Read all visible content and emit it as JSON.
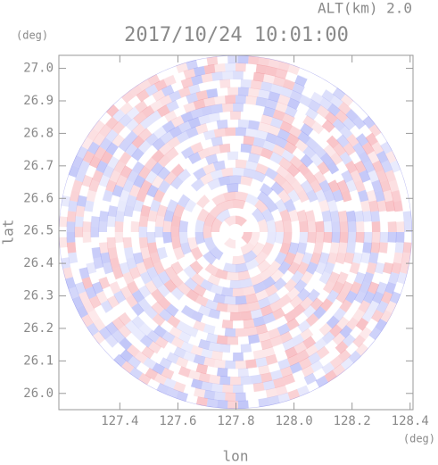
{
  "chart_data": {
    "type": "radar-ppi",
    "title": "2017/10/24 10:01:00",
    "subtitle": "ALT(km) 2.0",
    "x_label": "lon",
    "y_label": "lat",
    "x_unit": "(deg)",
    "y_unit": "(deg)",
    "xlim": [
      127.19,
      128.41
    ],
    "ylim": [
      25.95,
      27.04
    ],
    "xticks": [
      {
        "value": 127.4,
        "label": "127.4"
      },
      {
        "value": 127.6,
        "label": "127.6"
      },
      {
        "value": 127.8,
        "label": "127.8"
      },
      {
        "value": 128.0,
        "label": "128.0"
      },
      {
        "value": 128.2,
        "label": "128.2"
      },
      {
        "value": 128.4,
        "label": "128.4"
      }
    ],
    "yticks": [
      {
        "value": 26.0,
        "label": "26.0"
      },
      {
        "value": 26.1,
        "label": "26.1"
      },
      {
        "value": 26.2,
        "label": "26.2"
      },
      {
        "value": 26.3,
        "label": "26.3"
      },
      {
        "value": 26.4,
        "label": "26.4"
      },
      {
        "value": 26.5,
        "label": "26.5"
      },
      {
        "value": 26.6,
        "label": "26.6"
      },
      {
        "value": 26.7,
        "label": "26.7"
      },
      {
        "value": 26.8,
        "label": "26.8"
      },
      {
        "value": 26.9,
        "label": "26.9"
      },
      {
        "value": 27.0,
        "label": "27.0"
      }
    ]
  }
}
